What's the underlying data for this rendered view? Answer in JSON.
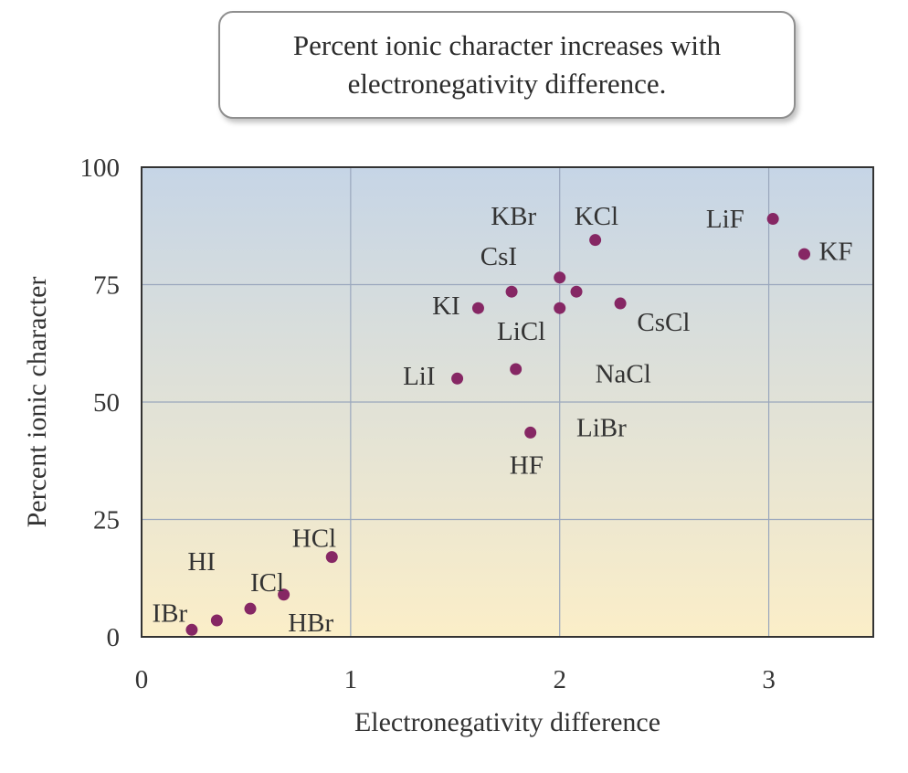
{
  "callout": {
    "line1": "Percent ionic character increases with",
    "line2": "electronegativity difference."
  },
  "colors": {
    "top": "#c6d5e6",
    "bottom": "#fbeec8",
    "point": "#862764",
    "grid": "#9aa7bd",
    "frame": "#333333"
  },
  "chart_data": {
    "type": "scatter",
    "xlabel": "Electronegativity difference",
    "ylabel": "Percent ionic character",
    "xlim": [
      0,
      3.5
    ],
    "ylim": [
      0,
      100
    ],
    "xticks": [
      0,
      1,
      2,
      3
    ],
    "yticks": [
      0,
      25,
      50,
      75,
      100
    ],
    "grid": true,
    "points": [
      {
        "x": 0.24,
        "y": 1.5
      },
      {
        "x": 0.36,
        "y": 3.5
      },
      {
        "x": 0.52,
        "y": 6
      },
      {
        "x": 0.68,
        "y": 9
      },
      {
        "x": 0.91,
        "y": 17
      },
      {
        "x": 1.51,
        "y": 55
      },
      {
        "x": 1.61,
        "y": 70
      },
      {
        "x": 1.77,
        "y": 73.5
      },
      {
        "x": 1.79,
        "y": 57
      },
      {
        "x": 1.86,
        "y": 43.5
      },
      {
        "x": 2.0,
        "y": 76.5
      },
      {
        "x": 2.0,
        "y": 70
      },
      {
        "x": 2.08,
        "y": 73.5
      },
      {
        "x": 2.17,
        "y": 84.5
      },
      {
        "x": 2.29,
        "y": 71
      },
      {
        "x": 3.02,
        "y": 89
      },
      {
        "x": 3.17,
        "y": 81.5
      }
    ],
    "labels": [
      {
        "text": "IBr",
        "x": 0.05,
        "y": 4.5
      },
      {
        "text": "HI",
        "x": 0.22,
        "y": 15.5
      },
      {
        "text": "ICl",
        "x": 0.52,
        "y": 11
      },
      {
        "text": "HCl",
        "x": 0.72,
        "y": 20.5
      },
      {
        "text": "HBr",
        "x": 0.7,
        "y": 2.5
      },
      {
        "text": "LiI",
        "x": 1.25,
        "y": 55
      },
      {
        "text": "KI",
        "x": 1.39,
        "y": 70
      },
      {
        "text": "CsI",
        "x": 1.62,
        "y": 80.5
      },
      {
        "text": "LiCl",
        "x": 1.7,
        "y": 64.5
      },
      {
        "text": "KBr",
        "x": 1.67,
        "y": 89
      },
      {
        "text": "KCl",
        "x": 2.07,
        "y": 89
      },
      {
        "text": "CsCl",
        "x": 2.37,
        "y": 66.5
      },
      {
        "text": "NaCl",
        "x": 2.17,
        "y": 55.5
      },
      {
        "text": "LiBr",
        "x": 2.08,
        "y": 44
      },
      {
        "text": "HF",
        "x": 1.76,
        "y": 36
      },
      {
        "text": "LiF",
        "x": 2.7,
        "y": 88.5
      },
      {
        "text": "KF",
        "x": 3.24,
        "y": 81.5
      }
    ]
  }
}
